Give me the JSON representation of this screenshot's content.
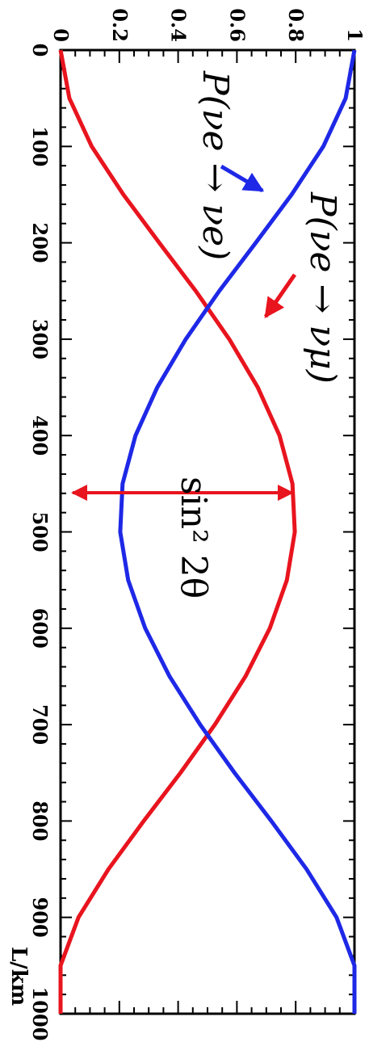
{
  "chart_data": {
    "type": "line",
    "title": "",
    "xlabel": "L/km",
    "ylabel": "",
    "xlim": [
      0,
      1000
    ],
    "ylim": [
      0,
      1
    ],
    "x_ticks": [
      "0",
      "100",
      "200",
      "300",
      "400",
      "500",
      "600",
      "700",
      "800",
      "900",
      "1000"
    ],
    "y_ticks": [
      "0",
      "0.2",
      "0.4",
      "0.6",
      "0.8",
      "1"
    ],
    "series": [
      {
        "name": "P(νe → νμ)",
        "color": "#e8141e",
        "x": [
          0,
          50,
          100,
          150,
          200,
          250,
          300,
          350,
          400,
          450,
          500,
          550,
          600,
          650,
          700,
          750,
          800,
          850,
          900,
          950,
          1000
        ],
        "values": [
          0.0,
          0.03,
          0.106,
          0.214,
          0.336,
          0.46,
          0.574,
          0.671,
          0.745,
          0.789,
          0.797,
          0.77,
          0.712,
          0.629,
          0.525,
          0.408,
          0.283,
          0.163,
          0.061,
          0.0,
          0.0
        ]
      },
      {
        "name": "P(νe → νe)",
        "color": "#1e28e6",
        "x": [
          0,
          50,
          100,
          150,
          200,
          250,
          300,
          350,
          400,
          450,
          500,
          550,
          600,
          650,
          700,
          750,
          800,
          850,
          900,
          950,
          1000
        ],
        "values": [
          1.0,
          0.97,
          0.894,
          0.786,
          0.664,
          0.54,
          0.426,
          0.329,
          0.255,
          0.211,
          0.203,
          0.23,
          0.288,
          0.371,
          0.475,
          0.592,
          0.717,
          0.837,
          0.939,
          1.0,
          1.0
        ]
      }
    ],
    "annotations": {
      "label_mu": "P(νe → νμ)",
      "label_e": "P(νe → νe)",
      "amplitude": "sin² 2θ"
    }
  }
}
